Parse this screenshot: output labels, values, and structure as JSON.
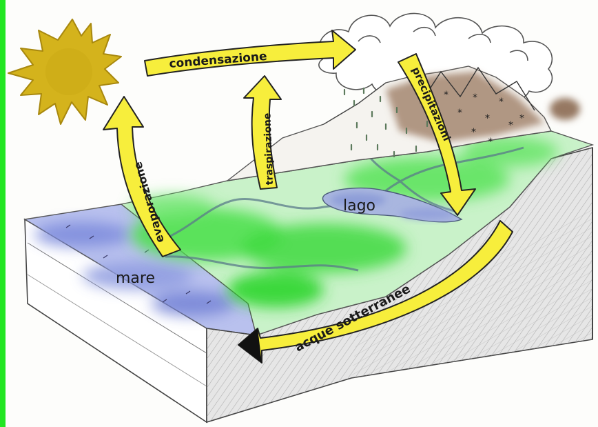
{
  "labels": {
    "condensation": "condensazione",
    "evaporation": "evaporazione",
    "transpiration": "traspirazione",
    "precipitation": "precipitazioni",
    "groundwater": "acque sotterranee",
    "lake": "lago",
    "sea": "mare"
  },
  "colors": {
    "left_border": "#22e622",
    "sun": "#d4b31c",
    "arrow_fill": "#f7ee3c",
    "arrow_stroke": "#222222",
    "sea": "#8e9be0",
    "land": "#52e052",
    "mountain": "#a48670",
    "rock_side": "#d6d6d6",
    "cloud_stroke": "#555555"
  }
}
